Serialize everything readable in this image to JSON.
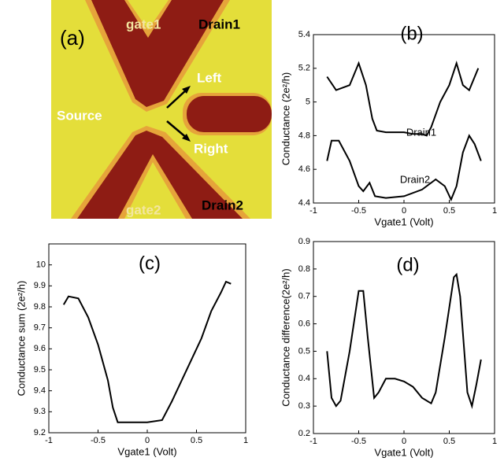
{
  "panel_a": {
    "label": "(a)",
    "annotations": [
      "gate1",
      "Drain1",
      "Left",
      "Source",
      "Right",
      "gate2",
      "Drain2"
    ]
  },
  "chart_data": [
    {
      "type": "line",
      "title": "(b)",
      "x_label": "Vgate1 (Volt)",
      "y_label": "Conductance (2e²/h)",
      "xlim": [
        -1,
        1
      ],
      "xticks": [
        -1,
        -0.5,
        0,
        0.5,
        1
      ],
      "ylim": [
        4.4,
        5.4
      ],
      "yticks": [
        4.4,
        4.6,
        4.8,
        5,
        5.2,
        5.4
      ],
      "series": [
        {
          "name": "Drain1",
          "color": "#000000",
          "x": [
            -0.85,
            -0.75,
            -0.6,
            -0.5,
            -0.42,
            -0.35,
            -0.3,
            -0.2,
            -0.1,
            0,
            0.1,
            0.2,
            0.25,
            0.3,
            0.4,
            0.5,
            0.58,
            0.65,
            0.72,
            0.82
          ],
          "values": [
            5.15,
            5.07,
            5.1,
            5.23,
            5.1,
            4.9,
            4.83,
            4.82,
            4.82,
            4.82,
            4.81,
            4.81,
            4.8,
            4.85,
            5.0,
            5.1,
            5.23,
            5.1,
            5.07,
            5.2
          ]
        },
        {
          "name": "Drain2",
          "color": "#000000",
          "x": [
            -0.85,
            -0.8,
            -0.72,
            -0.6,
            -0.5,
            -0.45,
            -0.38,
            -0.32,
            -0.2,
            0,
            0.2,
            0.35,
            0.45,
            0.52,
            0.58,
            0.65,
            0.72,
            0.78,
            0.85
          ],
          "values": [
            4.65,
            4.77,
            4.77,
            4.65,
            4.5,
            4.47,
            4.52,
            4.44,
            4.43,
            4.44,
            4.48,
            4.54,
            4.5,
            4.42,
            4.5,
            4.7,
            4.8,
            4.75,
            4.65
          ]
        }
      ]
    },
    {
      "type": "line",
      "title": "(c)",
      "x_label": "Vgate1 (Volt)",
      "y_label": "Conductance sum (2e²/h)",
      "xlim": [
        -1,
        1
      ],
      "xticks": [
        -1,
        -0.5,
        0,
        0.5,
        1
      ],
      "ylim": [
        9.2,
        10.1
      ],
      "yticks": [
        9.2,
        9.3,
        9.4,
        9.5,
        9.6,
        9.7,
        9.8,
        9.9,
        10
      ],
      "series": [
        {
          "color": "#000000",
          "x": [
            -0.85,
            -0.8,
            -0.7,
            -0.6,
            -0.5,
            -0.4,
            -0.35,
            -0.3,
            -0.15,
            0,
            0.15,
            0.25,
            0.35,
            0.45,
            0.55,
            0.65,
            0.75,
            0.8,
            0.85
          ],
          "values": [
            9.81,
            9.85,
            9.84,
            9.75,
            9.62,
            9.45,
            9.32,
            9.25,
            9.25,
            9.25,
            9.26,
            9.35,
            9.45,
            9.55,
            9.65,
            9.78,
            9.87,
            9.92,
            9.91
          ]
        }
      ]
    },
    {
      "type": "line",
      "title": "(d)",
      "x_label": "Vgate1 (Volt)",
      "y_label": "Conductance difference(2e²/h)",
      "xlim": [
        -1,
        1
      ],
      "xticks": [
        -1,
        -0.5,
        0,
        0.5,
        1
      ],
      "ylim": [
        0.2,
        0.9
      ],
      "yticks": [
        0.2,
        0.3,
        0.4,
        0.5,
        0.6,
        0.7,
        0.8,
        0.9
      ],
      "series": [
        {
          "color": "#000000",
          "x": [
            -0.85,
            -0.8,
            -0.75,
            -0.7,
            -0.6,
            -0.5,
            -0.45,
            -0.4,
            -0.33,
            -0.28,
            -0.2,
            -0.1,
            0,
            0.1,
            0.2,
            0.3,
            0.35,
            0.45,
            0.55,
            0.58,
            0.62,
            0.7,
            0.75,
            0.8,
            0.85
          ],
          "values": [
            0.5,
            0.33,
            0.3,
            0.32,
            0.5,
            0.72,
            0.72,
            0.55,
            0.33,
            0.35,
            0.4,
            0.4,
            0.39,
            0.37,
            0.33,
            0.31,
            0.35,
            0.55,
            0.77,
            0.78,
            0.7,
            0.35,
            0.3,
            0.38,
            0.47
          ]
        }
      ]
    }
  ]
}
